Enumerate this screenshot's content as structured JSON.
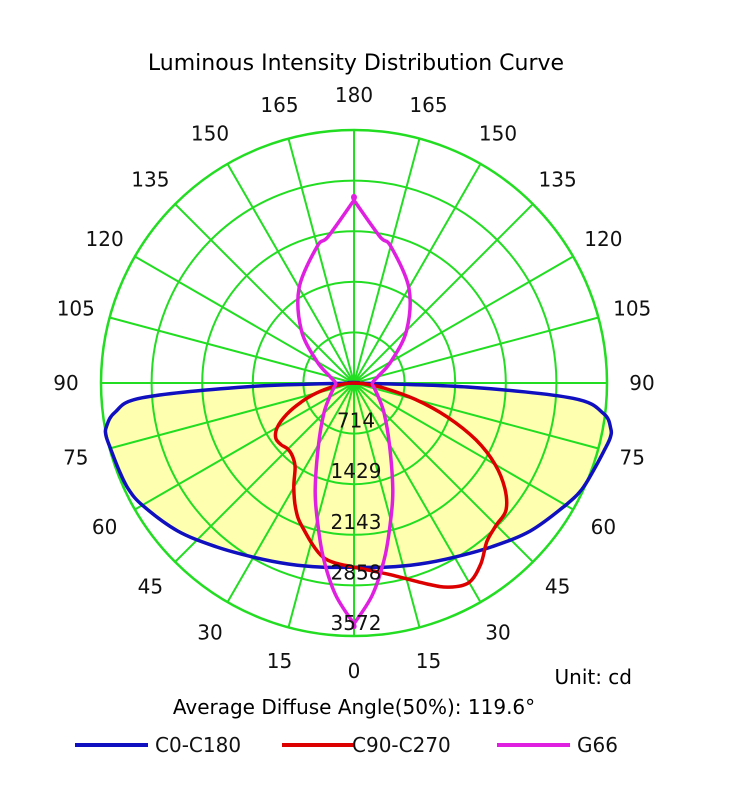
{
  "chart_data": {
    "type": "polar",
    "title": "Luminous Intensity Distribution Curve",
    "unit_label": "Unit: cd",
    "average_diffuse_angle_label": "Average Diffuse Angle(50%): 119.6°",
    "angle_labels_left": [
      "0",
      "15",
      "30",
      "45",
      "60",
      "75",
      "90",
      "105",
      "120",
      "135",
      "150",
      "165",
      "180"
    ],
    "angle_labels_right": [
      "0",
      "15",
      "30",
      "45",
      "60",
      "75",
      "90",
      "105",
      "120",
      "135",
      "150",
      "165",
      "180"
    ],
    "radial_ticks": [
      "714",
      "1429",
      "2143",
      "2858",
      "3572"
    ],
    "radial_tick_values": [
      714,
      1429,
      2143,
      2858,
      3572
    ],
    "rmax": 3572,
    "grid_color": "#22dd22",
    "fill_color": "#ffffb0",
    "series": [
      {
        "name": "C0-C180",
        "color": "#1010c0",
        "filled": true,
        "angles": [
          0,
          10,
          20,
          30,
          40,
          50,
          60,
          65,
          70,
          75,
          78,
          80,
          83,
          86,
          88,
          90
        ],
        "left": [
          2600,
          2640,
          2720,
          2840,
          3020,
          3250,
          3450,
          3520,
          3540,
          3560,
          3580,
          3550,
          3400,
          3000,
          1500,
          0
        ],
        "right": [
          2600,
          2640,
          2720,
          2840,
          3020,
          3250,
          3450,
          3550,
          3600,
          3660,
          3700,
          3680,
          3550,
          3100,
          1600,
          0
        ]
      },
      {
        "name": "C90-C270",
        "color": "#dd0000",
        "filled": false,
        "angles": [
          0,
          10,
          20,
          25,
          30,
          35,
          40,
          45,
          50,
          55,
          60,
          65,
          70,
          75,
          80,
          85,
          90
        ],
        "left": [
          2600,
          2500,
          2150,
          1950,
          1700,
          1450,
          1350,
          1320,
          1350,
          1350,
          1250,
          1050,
          800,
          550,
          300,
          120,
          0
        ],
        "right": [
          2600,
          2740,
          3020,
          3180,
          3250,
          3120,
          2920,
          2840,
          2800,
          2600,
          2300,
          1900,
          1400,
          900,
          450,
          150,
          0
        ]
      },
      {
        "name": "G66",
        "color": "#e020e0",
        "filled": false,
        "angles": [
          0,
          5,
          10,
          15,
          20,
          30,
          45,
          60,
          75,
          90,
          105,
          120,
          135,
          150,
          165,
          170,
          180
        ],
        "left": [
          3400,
          3000,
          2500,
          2000,
          1600,
          1000,
          600,
          400,
          300,
          260,
          350,
          600,
          1050,
          1550,
          2000,
          2100,
          2580
        ],
        "right": [
          3400,
          3000,
          2500,
          2000,
          1600,
          1000,
          600,
          400,
          300,
          260,
          350,
          600,
          1050,
          1550,
          2000,
          2100,
          2580
        ]
      }
    ]
  }
}
